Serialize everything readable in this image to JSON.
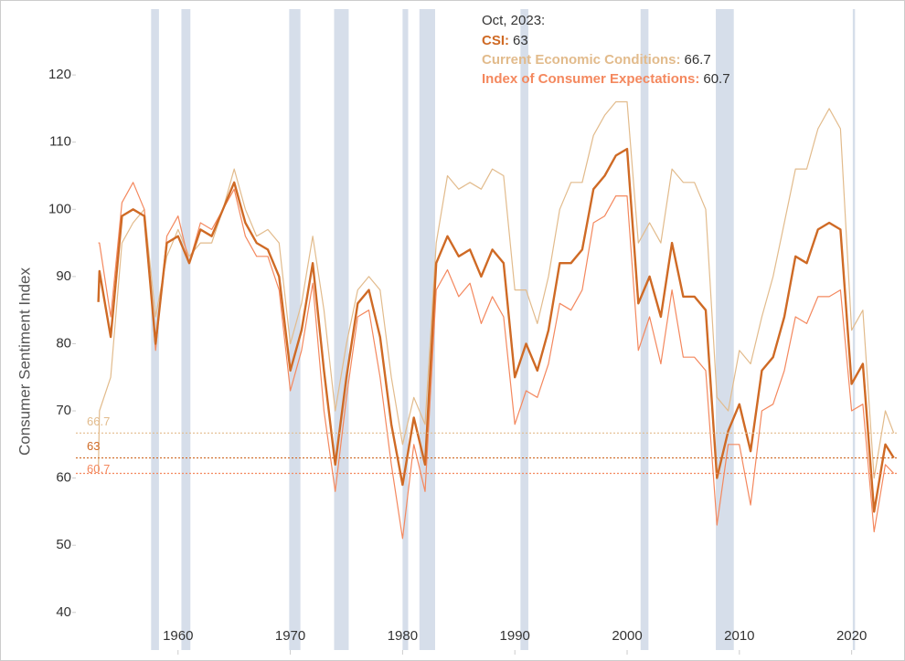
{
  "chart_data": {
    "type": "line",
    "y_label": "Consumer Sentiment Index",
    "x": [
      1952.9,
      1953,
      1954,
      1955,
      1956,
      1957,
      1958,
      1959,
      1960,
      1961,
      1962,
      1963,
      1964,
      1965,
      1966,
      1967,
      1968,
      1969,
      1970,
      1971,
      1972,
      1973,
      1974,
      1975,
      1976,
      1977,
      1978,
      1979,
      1980,
      1981,
      1982,
      1983,
      1984,
      1985,
      1986,
      1987,
      1988,
      1989,
      1990,
      1991,
      1992,
      1993,
      1994,
      1995,
      1996,
      1997,
      1998,
      1999,
      2000,
      2001,
      2002,
      2003,
      2004,
      2005,
      2006,
      2007,
      2008,
      2009,
      2010,
      2011,
      2012,
      2013,
      2014,
      2015,
      2016,
      2017,
      2018,
      2019,
      2020,
      2021,
      2022,
      2023,
      2023.75
    ],
    "series": [
      {
        "name": "Current Economic Conditions",
        "color": "#e2bb8c",
        "width": 1.2,
        "values": [
          61,
          70,
          75,
          95,
          98,
          100,
          84,
          93,
          97,
          93,
          95,
          95,
          100,
          106,
          100,
          96,
          97,
          95,
          80,
          86,
          96,
          85,
          70,
          80,
          88,
          90,
          88,
          75,
          65,
          72,
          68,
          95,
          105,
          103,
          104,
          103,
          106,
          105,
          88,
          88,
          83,
          90,
          100,
          104,
          104,
          111,
          114,
          116,
          116,
          95,
          98,
          95,
          106,
          104,
          104,
          100,
          72,
          70,
          79,
          77,
          84,
          90,
          98,
          106,
          106,
          112,
          115,
          112,
          82,
          85,
          60,
          70,
          66.7
        ]
      },
      {
        "name": "Index of Consumer Expectations",
        "color": "#f4885e",
        "width": 1.2,
        "values": [
          95,
          95,
          84,
          101,
          104,
          100,
          79,
          96,
          99,
          92,
          98,
          97,
          100,
          103,
          96,
          93,
          93,
          88,
          73,
          79,
          89,
          70,
          58,
          72,
          84,
          85,
          75,
          62,
          51,
          65,
          58,
          88,
          91,
          87,
          89,
          83,
          87,
          84,
          68,
          73,
          72,
          77,
          86,
          85,
          88,
          98,
          99,
          102,
          102,
          79,
          84,
          77,
          88,
          78,
          78,
          76,
          53,
          65,
          65,
          56,
          70,
          71,
          76,
          84,
          83,
          87,
          87,
          88,
          70,
          71,
          52,
          62,
          60.7
        ]
      },
      {
        "name": "CSI",
        "color": "#cf6a25",
        "width": 2.4,
        "values": [
          86.2,
          90.8,
          81,
          99,
          100,
          99,
          80,
          95,
          96,
          92,
          97,
          96,
          100,
          104,
          98,
          95,
          94,
          90,
          76,
          82,
          92,
          76,
          62,
          75,
          86,
          88,
          81,
          68,
          59,
          69,
          62,
          92,
          96,
          93,
          94,
          90,
          94,
          92,
          75,
          80,
          76,
          82,
          92,
          92,
          94,
          103,
          105,
          108,
          109,
          86,
          90,
          84,
          95,
          87,
          87,
          85,
          60,
          67,
          71,
          64,
          76,
          78,
          84,
          93,
          92,
          97,
          98,
          97,
          74,
          77,
          55,
          65,
          63
        ]
      }
    ],
    "tooltip": {
      "title": "Oct, 2023:",
      "rows": [
        {
          "label": "CSI:",
          "series": 2
        },
        {
          "label": "Current Economic Conditions:",
          "series": 0
        },
        {
          "label": "Index of Consumer Expectations:",
          "series": 1
        }
      ]
    },
    "recessions": [
      [
        1957.6,
        1958.3
      ],
      [
        1960.3,
        1961.1
      ],
      [
        1969.9,
        1970.9
      ],
      [
        1973.9,
        1975.2
      ],
      [
        1980.0,
        1980.5
      ],
      [
        1981.5,
        1982.9
      ],
      [
        1990.5,
        1991.2
      ],
      [
        2001.2,
        2001.9
      ],
      [
        2007.9,
        2009.5
      ],
      [
        2020.1,
        2020.3
      ]
    ],
    "recession_color": "#d6deea",
    "xlim": [
      1950.9,
      2024.1
    ],
    "ylim": [
      34.4,
      129.8
    ],
    "xticks": [
      1960,
      1970,
      1980,
      1990,
      2000,
      2010,
      2020
    ],
    "yticks": [
      40,
      50,
      60,
      70,
      80,
      90,
      100,
      110,
      120
    ]
  }
}
